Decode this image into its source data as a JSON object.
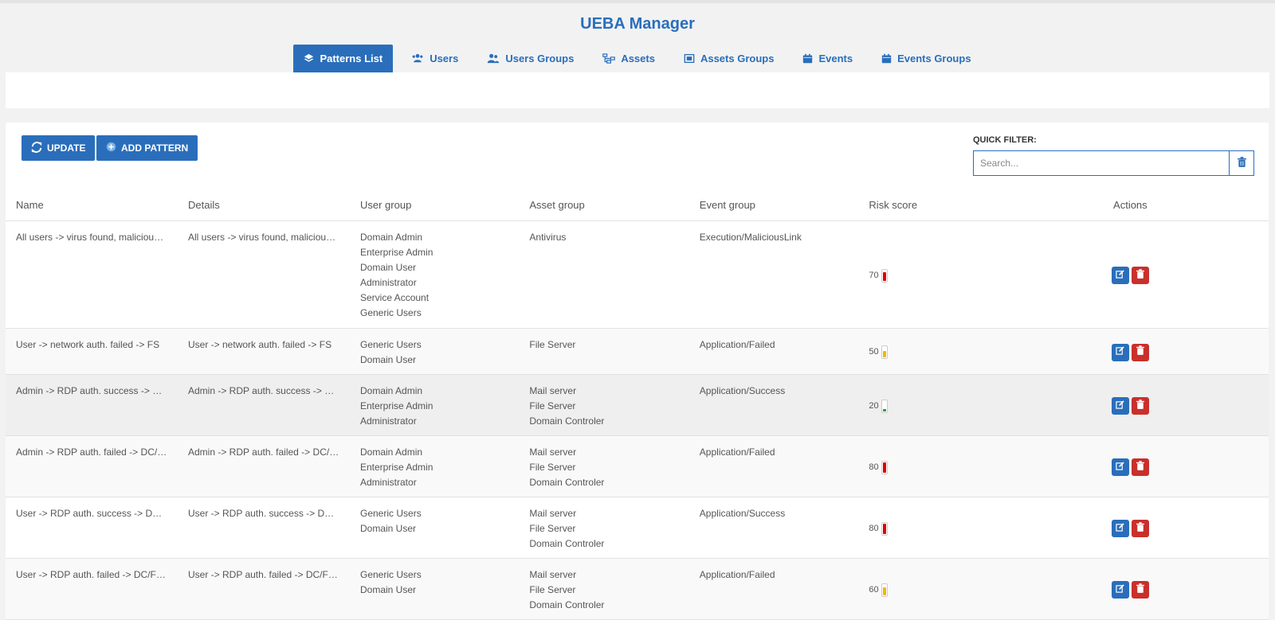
{
  "app": {
    "title": "UEBA Manager"
  },
  "tabs": [
    {
      "label": "Patterns List",
      "icon": "layers-icon",
      "active": true
    },
    {
      "label": "Users",
      "icon": "users-icon"
    },
    {
      "label": "Users Groups",
      "icon": "user-group-icon"
    },
    {
      "label": "Assets",
      "icon": "sitemap-icon"
    },
    {
      "label": "Assets Groups",
      "icon": "image-icon"
    },
    {
      "label": "Events",
      "icon": "calendar-icon"
    },
    {
      "label": "Events Groups",
      "icon": "calendar-icon"
    }
  ],
  "toolbar": {
    "update_label": "UPDATE",
    "add_label": "ADD PATTERN"
  },
  "filter": {
    "label": "QUICK FILTER:",
    "placeholder": "Search...",
    "value": ""
  },
  "table": {
    "headers": [
      "Name",
      "Details",
      "User group",
      "Asset group",
      "Event group",
      "Risk score",
      "Actions"
    ],
    "rows": [
      {
        "name": "All users -> virus found, malicious link",
        "details": "All users -> virus found, malicious link",
        "user_groups": [
          "Domain Admin",
          "Enterprise Admin",
          "Domain User",
          "Administrator",
          "Service Account",
          "Generic Users"
        ],
        "asset_groups": [
          "Antivirus"
        ],
        "event_group": "Execution/MaliciousLink",
        "risk": 70,
        "risk_color": "#e00000"
      },
      {
        "name": "User -> network auth. failed -> FS",
        "details": "User -> network auth. failed -> FS",
        "user_groups": [
          "Generic Users",
          "Domain User"
        ],
        "asset_groups": [
          "File Server"
        ],
        "event_group": "Application/Failed",
        "risk": 50,
        "risk_color": "#f2b705"
      },
      {
        "name": "Admin -> RDP auth. success -> DC/FS/Mail",
        "details": "Admin -> RDP auth. success -> DC/FS/Mail",
        "user_groups": [
          "Domain Admin",
          "Enterprise Admin",
          "Administrator"
        ],
        "asset_groups": [
          "Mail server",
          "File Server",
          "Domain Controler"
        ],
        "event_group": "Application/Success",
        "risk": 20,
        "risk_color": "#1e9e2a"
      },
      {
        "name": "Admin -> RDP auth. failed -> DC/FS/Mail",
        "details": "Admin -> RDP auth. failed -> DC/FS/Mail",
        "user_groups": [
          "Domain Admin",
          "Enterprise Admin",
          "Administrator"
        ],
        "asset_groups": [
          "Mail server",
          "File Server",
          "Domain Controler"
        ],
        "event_group": "Application/Failed",
        "risk": 80,
        "risk_color": "#e00000"
      },
      {
        "name": "User -> RDP auth. success -> DC/FS/Mail",
        "details": "User -> RDP auth. success -> DC/FS/Mail",
        "user_groups": [
          "Generic Users",
          "Domain User"
        ],
        "asset_groups": [
          "Mail server",
          "File Server",
          "Domain Controler"
        ],
        "event_group": "Application/Success",
        "risk": 80,
        "risk_color": "#e00000"
      },
      {
        "name": "User -> RDP auth. failed -> DC/FS/Mail",
        "details": "User -> RDP auth. failed -> DC/FS/Mail",
        "user_groups": [
          "Generic Users",
          "Domain User"
        ],
        "asset_groups": [
          "Mail server",
          "File Server",
          "Domain Controler"
        ],
        "event_group": "Application/Failed",
        "risk": 60,
        "risk_color": "#f2b705"
      }
    ]
  }
}
